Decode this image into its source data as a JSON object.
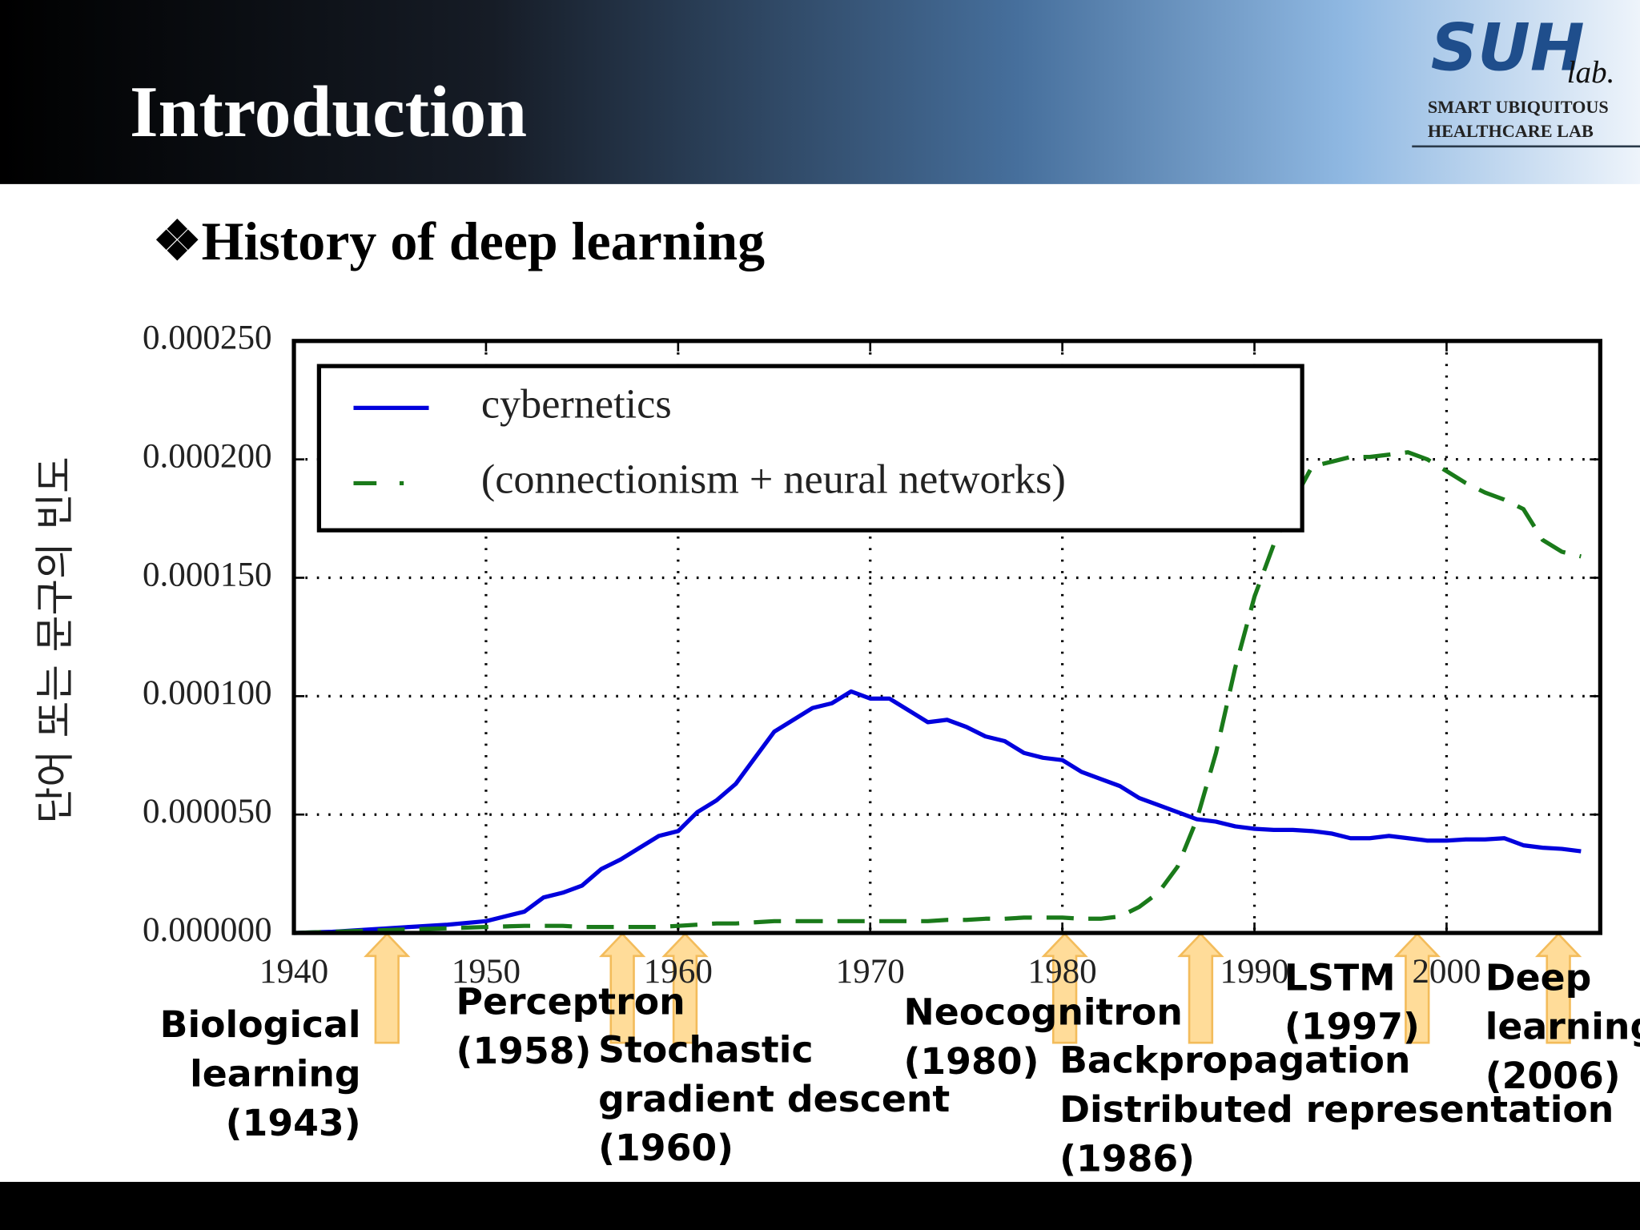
{
  "header": {
    "title": "Introduction",
    "logo": {
      "name": "SUH",
      "sub": "lab.",
      "line1": "SMART UBIQUITOUS",
      "line2": "HEALTHCARE LAB"
    }
  },
  "subtitle": "❖History of deep learning",
  "chart_data": {
    "type": "line",
    "y_label": "단어 또는 문구의 빈도",
    "x": [
      1940,
      1942,
      1944,
      1946,
      1948,
      1950,
      1952,
      1953,
      1954,
      1955,
      1956,
      1957,
      1958,
      1959,
      1960,
      1961,
      1962,
      1963,
      1964,
      1965,
      1966,
      1967,
      1968,
      1969,
      1970,
      1971,
      1972,
      1973,
      1974,
      1975,
      1976,
      1977,
      1978,
      1979,
      1980,
      1981,
      1982,
      1983,
      1984,
      1985,
      1986,
      1987,
      1988,
      1989,
      1990,
      1991,
      1992,
      1993,
      1994,
      1995,
      1996,
      1997,
      1998,
      1999,
      2000,
      2001,
      2002,
      2003,
      2004,
      2005,
      2006,
      2007
    ],
    "series": [
      {
        "name": "cybernetics",
        "color": "#0000dd",
        "linestyle": "solid",
        "values": [
          0,
          5e-07,
          1.5e-06,
          2.5e-06,
          3.5e-06,
          5e-06,
          9e-06,
          1.5e-05,
          1.7e-05,
          2e-05,
          2.7e-05,
          3.1e-05,
          3.6e-05,
          4.1e-05,
          4.3e-05,
          5.1e-05,
          5.6e-05,
          6.3e-05,
          7.4e-05,
          8.5e-05,
          9e-05,
          9.5e-05,
          9.7e-05,
          0.000102,
          9.9e-05,
          9.9e-05,
          9.4e-05,
          8.9e-05,
          9e-05,
          8.7e-05,
          8.3e-05,
          8.1e-05,
          7.6e-05,
          7.4e-05,
          7.3e-05,
          6.8e-05,
          6.5e-05,
          6.2e-05,
          5.7e-05,
          5.4e-05,
          5.1e-05,
          4.8e-05,
          4.7e-05,
          4.5e-05,
          4.4e-05,
          4.35e-05,
          4.35e-05,
          4.3e-05,
          4.2e-05,
          4e-05,
          4e-05,
          4.1e-05,
          4e-05,
          3.9e-05,
          3.9e-05,
          3.95e-05,
          3.95e-05,
          4e-05,
          3.7e-05,
          3.6e-05,
          3.55e-05,
          3.45e-05
        ]
      },
      {
        "name": "(connectionism + neural networks)",
        "color": "#1a7a1a",
        "linestyle": "dashed",
        "values": [
          0,
          5e-07,
          1e-06,
          1.5e-06,
          2e-06,
          2.5e-06,
          3e-06,
          3e-06,
          3e-06,
          2.5e-06,
          2.5e-06,
          2.5e-06,
          2.5e-06,
          2.5e-06,
          3e-06,
          3.5e-06,
          4e-06,
          4e-06,
          4.5e-06,
          5e-06,
          5e-06,
          5e-06,
          5e-06,
          5e-06,
          5e-06,
          5e-06,
          5e-06,
          5e-06,
          5.5e-06,
          5.5e-06,
          6e-06,
          6e-06,
          6.5e-06,
          6.5e-06,
          6.5e-06,
          6e-06,
          6e-06,
          7e-06,
          1.1e-05,
          1.7e-05,
          2.8e-05,
          4.8e-05,
          7.6e-05,
          0.000112,
          0.000142,
          0.000164,
          0.000182,
          0.000197,
          0.000199,
          0.000201,
          0.000201,
          0.000202,
          0.000203,
          0.0002,
          0.000195,
          0.00019,
          0.000186,
          0.000183,
          0.000179,
          0.000166,
          0.000161,
          0.000159
        ]
      }
    ],
    "xlim": [
      1940,
      2008
    ],
    "ylim": [
      0,
      0.00025
    ],
    "xticks": [
      1940,
      1950,
      1960,
      1970,
      1980,
      1990,
      2000
    ],
    "yticks": [
      {
        "value": 0,
        "label": "0.000000"
      },
      {
        "value": 5e-05,
        "label": "0.000050"
      },
      {
        "value": 0.0001,
        "label": "0.000100"
      },
      {
        "value": 0.00015,
        "label": "0.000150"
      },
      {
        "value": 0.0002,
        "label": "0.000200"
      },
      {
        "value": 0.00025,
        "label": "0.000250"
      }
    ],
    "grid": true,
    "legend": "upper left",
    "annotations": [
      {
        "lines": [
          "Biological",
          "learning",
          "(1943)"
        ]
      },
      {
        "lines": [
          "Perceptron",
          "(1958)"
        ]
      },
      {
        "lines": [
          "Stochastic",
          "gradient descent",
          "(1960)"
        ]
      },
      {
        "lines": [
          "Neocognitron",
          "(1980)"
        ]
      },
      {
        "lines": [
          "Backpropagation",
          "Distributed representation",
          "(1986)"
        ]
      },
      {
        "lines": [
          "LSTM",
          "(1997)"
        ]
      },
      {
        "lines": [
          "Deep",
          "learning",
          "(2006)"
        ]
      }
    ]
  }
}
